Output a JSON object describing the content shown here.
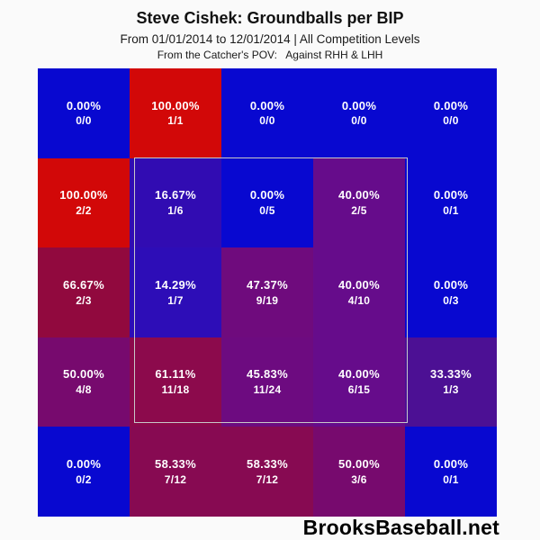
{
  "header": {
    "title": "Steve Cishek: Groundballs per BIP",
    "subtitle": "From 01/01/2014 to 12/01/2014 | All Competition Levels",
    "pov_line": "From the Catcher's POV:   Against RHH & LHH"
  },
  "footer": {
    "branding": "BrooksBaseball.net"
  },
  "chart_data": {
    "type": "heatmap",
    "title": "Steve Cishek: Groundballs per BIP",
    "date_range": "01/01/2014 to 12/01/2014",
    "competition": "All Competition Levels",
    "pov": "From the Catcher's POV: Against RHH & LHH",
    "rows": 5,
    "cols": 5,
    "value_meaning": "groundball percentage per balls in play (GB/BIP)",
    "color_scale": {
      "low": "#0808d0",
      "high": "#d20808",
      "low_label": "0%",
      "high_label": "100%"
    },
    "strike_zone": {
      "row_start": 2,
      "row_end": 4,
      "col_start": 2,
      "col_end": 4,
      "outline_color": "#c8c8c8"
    },
    "cells": [
      [
        {
          "pct": "0.00%",
          "frac": "0/0",
          "value": 0.0,
          "color": "#0808d0"
        },
        {
          "pct": "100.00%",
          "frac": "1/1",
          "value": 100.0,
          "color": "#d20808"
        },
        {
          "pct": "0.00%",
          "frac": "0/0",
          "value": 0.0,
          "color": "#0808d0"
        },
        {
          "pct": "0.00%",
          "frac": "0/0",
          "value": 0.0,
          "color": "#0808d0"
        },
        {
          "pct": "0.00%",
          "frac": "0/0",
          "value": 0.0,
          "color": "#0808d0"
        }
      ],
      [
        {
          "pct": "100.00%",
          "frac": "2/2",
          "value": 100.0,
          "color": "#d20808"
        },
        {
          "pct": "16.67%",
          "frac": "1/6",
          "value": 16.67,
          "color": "#310cb2"
        },
        {
          "pct": "0.00%",
          "frac": "0/5",
          "value": 0.0,
          "color": "#0808d0"
        },
        {
          "pct": "40.00%",
          "frac": "2/5",
          "value": 40.0,
          "color": "#660c8b"
        },
        {
          "pct": "0.00%",
          "frac": "0/1",
          "value": 0.0,
          "color": "#0808d0"
        }
      ],
      [
        {
          "pct": "66.67%",
          "frac": "2/3",
          "value": 66.67,
          "color": "#91093e"
        },
        {
          "pct": "14.29%",
          "frac": "1/7",
          "value": 14.29,
          "color": "#2d0db7"
        },
        {
          "pct": "47.37%",
          "frac": "9/19",
          "value": 47.37,
          "color": "#6f0b7d"
        },
        {
          "pct": "40.00%",
          "frac": "4/10",
          "value": 40.0,
          "color": "#660c8b"
        },
        {
          "pct": "0.00%",
          "frac": "0/3",
          "value": 0.0,
          "color": "#0808d0"
        }
      ],
      [
        {
          "pct": "50.00%",
          "frac": "4/8",
          "value": 50.0,
          "color": "#770a6e"
        },
        {
          "pct": "61.11%",
          "frac": "11/18",
          "value": 61.11,
          "color": "#8c0a4c"
        },
        {
          "pct": "45.83%",
          "frac": "11/24",
          "value": 45.83,
          "color": "#6d0b80"
        },
        {
          "pct": "40.00%",
          "frac": "6/15",
          "value": 40.0,
          "color": "#660c8b"
        },
        {
          "pct": "33.33%",
          "frac": "1/3",
          "value": 33.33,
          "color": "#4c1094"
        }
      ],
      [
        {
          "pct": "0.00%",
          "frac": "0/2",
          "value": 0.0,
          "color": "#0808d0"
        },
        {
          "pct": "58.33%",
          "frac": "7/12",
          "value": 58.33,
          "color": "#870a52"
        },
        {
          "pct": "58.33%",
          "frac": "7/12",
          "value": 58.33,
          "color": "#870a52"
        },
        {
          "pct": "50.00%",
          "frac": "3/6",
          "value": 50.0,
          "color": "#770a6e"
        },
        {
          "pct": "0.00%",
          "frac": "0/1",
          "value": 0.0,
          "color": "#0808d0"
        }
      ]
    ]
  }
}
